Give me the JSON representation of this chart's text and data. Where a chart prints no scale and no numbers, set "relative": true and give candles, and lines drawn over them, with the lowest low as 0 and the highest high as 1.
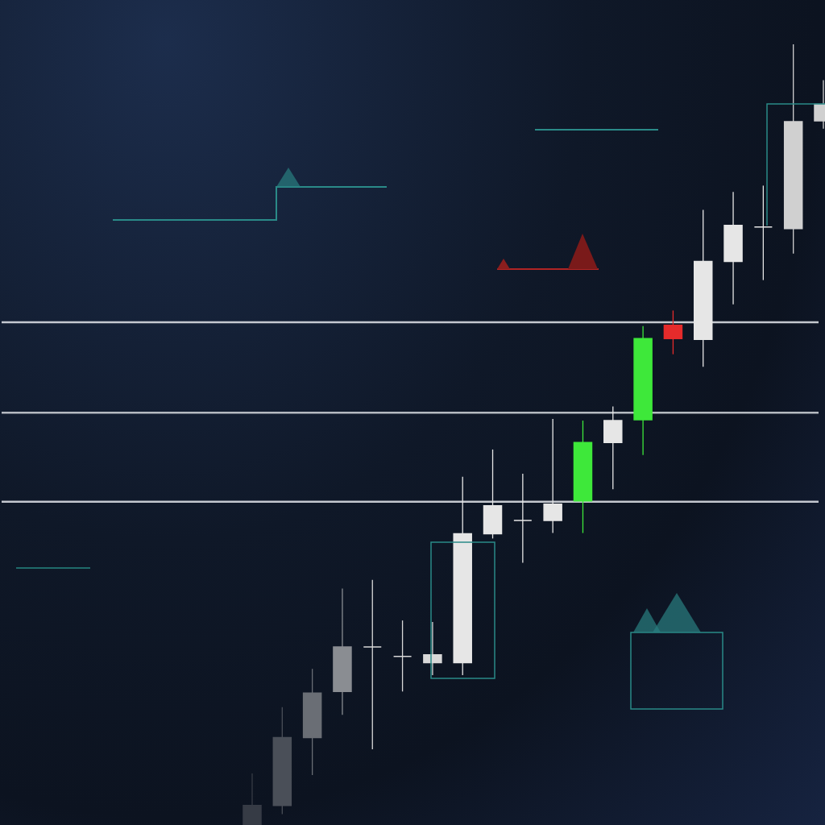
{
  "chart_data": {
    "type": "candlestick",
    "relative": true,
    "categories": [
      null,
      null,
      null,
      null,
      null,
      null,
      null,
      null,
      null,
      null,
      null,
      null,
      null,
      null,
      null,
      null,
      null,
      null,
      null,
      null
    ],
    "ohlc": [
      [
        0,
        0.066,
        0,
        0.025
      ],
      [
        0.025,
        0.151,
        0.014,
        0.112
      ],
      [
        0.112,
        0.2,
        0.064,
        0.169
      ],
      [
        0.171,
        0.303,
        0.141,
        0.228
      ],
      [
        0.228,
        0.314,
        0.097,
        0.228
      ],
      [
        0.216,
        0.262,
        0.171,
        0.216
      ],
      [
        0.208,
        0.26,
        0.192,
        0.218
      ],
      [
        0.208,
        0.446,
        0.192,
        0.373
      ],
      [
        0.373,
        0.481,
        0.367,
        0.409
      ],
      [
        0.39,
        0.45,
        0.336,
        0.39
      ],
      [
        0.39,
        0.52,
        0.374,
        0.411
      ],
      [
        0.415,
        0.518,
        0.374,
        0.49
      ],
      [
        0.49,
        0.536,
        0.43,
        0.518
      ],
      [
        0.519,
        0.639,
        0.474,
        0.623
      ],
      [
        0.64,
        0.659,
        0.603,
        0.623
      ],
      [
        0.622,
        0.788,
        0.587,
        0.722
      ],
      [
        0.722,
        0.811,
        0.667,
        0.768
      ],
      [
        0.766,
        0.819,
        0.698,
        0.766
      ],
      [
        0.764,
        1,
        0.732,
        0.901
      ],
      [
        0.902,
        0.954,
        0.892,
        0.923
      ]
    ],
    "colors": [
      "#363b45",
      "#4a4f58",
      "#6a6e75",
      "#8a8d92",
      "#d8d8d8",
      "#d8d8d8",
      "#d8d8d8",
      "#e6e6e6",
      "#e6e6e6",
      "#e6e6e6",
      "#e6e6e6",
      "#3ee83a",
      "#e6e6e6",
      "#3ee83a",
      "#e52b2b",
      "#e6e6e6",
      "#e6e6e6",
      "#e6e6e6",
      "#d0d0d0",
      "#d0d0d0"
    ],
    "ref_lines": [
      {
        "axis": "y",
        "value": 0.644,
        "color": "#d8dce2"
      },
      {
        "axis": "y",
        "value": 0.528,
        "color": "#c8ccd2"
      },
      {
        "axis": "y",
        "value": 0.414,
        "color": "#d8dce2"
      }
    ]
  }
}
